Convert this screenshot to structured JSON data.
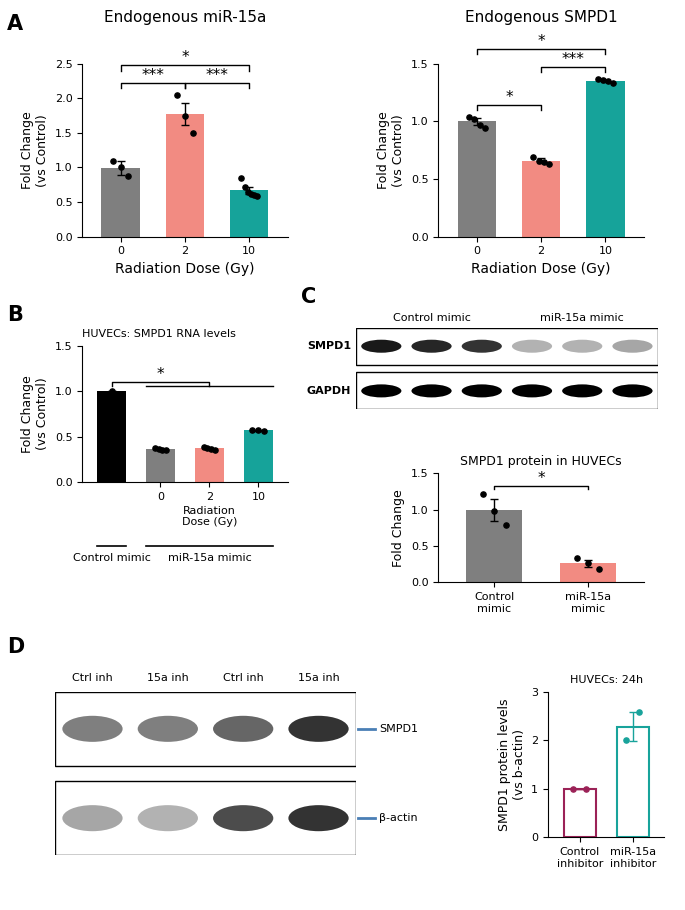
{
  "panel_labels": [
    "A",
    "B",
    "C",
    "D"
  ],
  "chart_data": [
    {
      "type": "bar",
      "title": "Endogenous miR-15a",
      "xlabel": "Radiation Dose (Gy)",
      "ylabel": "Fold Change\n(vs Control)",
      "categories": [
        "0",
        "2",
        "10"
      ],
      "values": [
        0.99,
        1.77,
        0.67
      ],
      "errors": [
        0.1,
        0.16,
        0.05
      ],
      "points": [
        [
          1.1,
          1.0,
          0.88
        ],
        [
          2.05,
          1.75,
          1.5
        ],
        [
          0.85,
          0.72,
          0.65,
          0.62,
          0.6,
          0.58
        ]
      ],
      "colors": [
        "#7f7f7f",
        "#f28b82",
        "#16a39a"
      ],
      "ylim": [
        0,
        2.5
      ],
      "yticks": [
        {
          "value": 0,
          "label": "0.0"
        },
        0.5,
        {
          "value": 1,
          "label": "1.0"
        },
        1.5,
        {
          "value": 2,
          "label": "2.0"
        },
        2.5
      ],
      "significance": [
        {
          "from": [
            0,
            0
          ],
          "to": [
            1,
            1
          ],
          "label": "***"
        },
        {
          "from": [
            1,
            1
          ],
          "to": [
            2,
            2
          ],
          "label": "***"
        },
        {
          "from": [
            0,
            0
          ],
          "to": [
            2,
            2
          ],
          "label": "*"
        }
      ]
    },
    {
      "type": "bar",
      "title": "Endogenous SMPD1",
      "xlabel": "Radiation Dose (Gy)",
      "ylabel": "Fold Change\n(vs Control)",
      "categories": [
        "0",
        "2",
        "10"
      ],
      "values": [
        1.0,
        0.66,
        1.35
      ],
      "errors": [
        0.03,
        0.02,
        0.01
      ],
      "points": [
        [
          1.04,
          1.02,
          0.97,
          0.94
        ],
        [
          0.69,
          0.66,
          0.65,
          0.63
        ],
        [
          1.37,
          1.36,
          1.35,
          1.33
        ]
      ],
      "colors": [
        "#7f7f7f",
        "#f28b82",
        "#16a39a"
      ],
      "ylim": [
        0,
        1.5
      ],
      "yticks": [
        {
          "value": 0,
          "label": "0.0"
        },
        0.5,
        {
          "value": 1,
          "label": "1.0"
        },
        1.5
      ],
      "significance": [
        {
          "from": [
            0,
            0
          ],
          "to": [
            1,
            1
          ],
          "label": "*"
        },
        {
          "from": [
            1,
            1
          ],
          "to": [
            2,
            2
          ],
          "label": "***"
        },
        {
          "from": [
            0,
            0
          ],
          "to": [
            2,
            2
          ],
          "label": "*"
        }
      ]
    },
    {
      "type": "bar",
      "title": "HUVECs: SMPD1 RNA levels",
      "xlabel": "Radiation\nDose (Gy)",
      "ylabel": "Fold Change\n(vs Control)",
      "categories": [
        null,
        "0",
        "2",
        "10"
      ],
      "values": [
        1.0,
        0.37,
        0.38,
        0.57
      ],
      "errors": [
        0,
        0.01,
        0.01,
        0.01
      ],
      "points": [
        [
          1.0
        ],
        [
          0.38,
          0.37,
          0.36,
          0.35
        ],
        [
          0.39,
          0.38,
          0.37,
          0.36
        ],
        [
          0.57,
          0.57,
          0.56
        ]
      ],
      "colors": [
        "#000000",
        "#7f7f7f",
        "#f28b82",
        "#16a39a"
      ],
      "ylim": [
        0,
        1.5
      ],
      "yticks": [
        {
          "value": 0,
          "label": "0.0"
        },
        0.5,
        {
          "value": 1,
          "label": "1.0"
        },
        1.5
      ],
      "groups": [
        {
          "label": "Control mimic",
          "from": 0,
          "to": 0
        },
        {
          "label": "miR-15a mimic",
          "from": 1,
          "to": 3
        }
      ],
      "significance": [
        {
          "from": [
            0,
            0
          ],
          "to": [
            1,
            3
          ],
          "label": "*"
        }
      ]
    },
    {
      "type": "bar",
      "title": "SMPD1 protein in HUVECs",
      "ylabel": "Fold Change",
      "categories": [
        "Control\nmimic",
        "miR-15a\nmimic"
      ],
      "values": [
        1.0,
        0.26
      ],
      "errors": [
        0.15,
        0.05
      ],
      "points": [
        [
          1.22,
          0.98,
          0.79
        ],
        [
          0.33,
          0.26,
          0.18
        ]
      ],
      "colors": [
        "#7f7f7f",
        "#f28b82"
      ],
      "ylim": [
        0,
        1.5
      ],
      "yticks": [
        {
          "value": 0,
          "label": "0.0"
        },
        0.5,
        {
          "value": 1,
          "label": "1.0"
        },
        1.5
      ],
      "significance": [
        {
          "from": [
            0,
            0
          ],
          "to": [
            1,
            1
          ],
          "label": "*"
        }
      ]
    },
    {
      "type": "bar",
      "title": "HUVECs: 24h",
      "ylabel": "SMPD1 protein levels\n(vs b-actin)",
      "categories": [
        "Control\ninhibitor",
        "miR-15a\ninhibitor"
      ],
      "values": [
        1.0,
        2.28
      ],
      "errors": [
        0,
        0.29
      ],
      "points": [
        [
          1.0,
          1.0
        ],
        [
          2.0,
          2.57
        ]
      ],
      "colors": [
        "#9b2257",
        "#18a39b"
      ],
      "ylim": [
        0,
        3
      ],
      "yticks": [
        0,
        1,
        2,
        3
      ]
    }
  ],
  "blots": [
    {
      "lane_labels": [
        {
          "label": "Control mimic",
          "from": 0,
          "to": 2
        },
        {
          "label": "miR-15a mimic",
          "from": 3,
          "to": 5
        }
      ],
      "rows": [
        {
          "label": "SMPD1",
          "bands": [
            0.9,
            0.85,
            0.8,
            0.3,
            0.3,
            0.35
          ]
        },
        {
          "label": "GAPDH",
          "bands": [
            1,
            1,
            1,
            1,
            1,
            1
          ]
        }
      ]
    },
    {
      "lane_labels": [
        {
          "label": "Ctrl inh",
          "from": 0,
          "to": 0
        },
        {
          "label": "15a inh",
          "from": 1,
          "to": 1
        },
        {
          "label": "Ctrl inh",
          "from": 2,
          "to": 2
        },
        {
          "label": "15a inh",
          "from": 3,
          "to": 3
        }
      ],
      "rows": [
        {
          "label": "SMPD1",
          "bands": [
            0.5,
            0.5,
            0.6,
            0.8
          ]
        },
        {
          "label": "β-actin",
          "bands": [
            0.35,
            0.3,
            0.7,
            0.8
          ]
        }
      ]
    }
  ]
}
